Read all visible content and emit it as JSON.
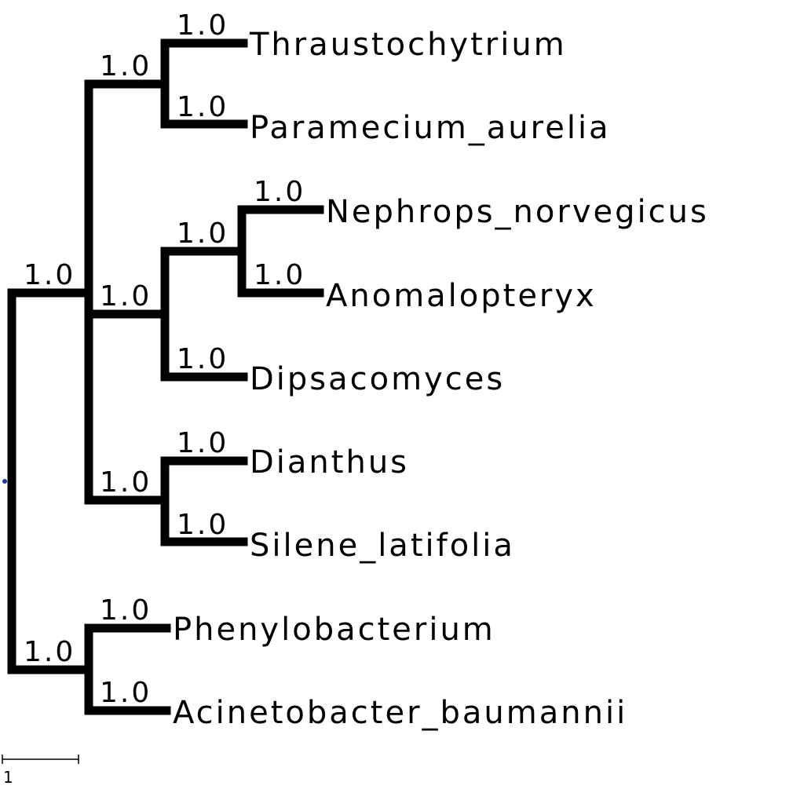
{
  "tree": {
    "branch_color": "#000000",
    "root_marker_color": "#1f3fa0",
    "support_values": {
      "root": "1.0",
      "clade_eukaryotes": "1.0",
      "clade_thraus_param": "1.0",
      "clade_opisthokont": "1.0",
      "clade_neph_anom": "1.0",
      "clade_dianthus_silene": "1.0",
      "clade_bacteria": "1.0",
      "thraustochytrium": "1.0",
      "paramecium": "1.0",
      "nephrops": "1.0",
      "anomalopteryx": "1.0",
      "dipsacomyces": "1.0",
      "dianthus": "1.0",
      "silene": "1.0",
      "phenylobacterium": "1.0",
      "acinetobacter": "1.0"
    },
    "leaves": {
      "thraustochytrium": "Thraustochytrium",
      "paramecium": "Paramecium_aurelia",
      "nephrops": "Nephrops_norvegicus",
      "anomalopteryx": "Anomalopteryx",
      "dipsacomyces": "Dipsacomyces",
      "dianthus": "Dianthus",
      "silene": "Silene_latifolia",
      "phenylobacterium": "Phenylobacterium",
      "acinetobacter": "Acinetobacter_baumannii"
    },
    "scale_bar": {
      "label": "1"
    }
  }
}
